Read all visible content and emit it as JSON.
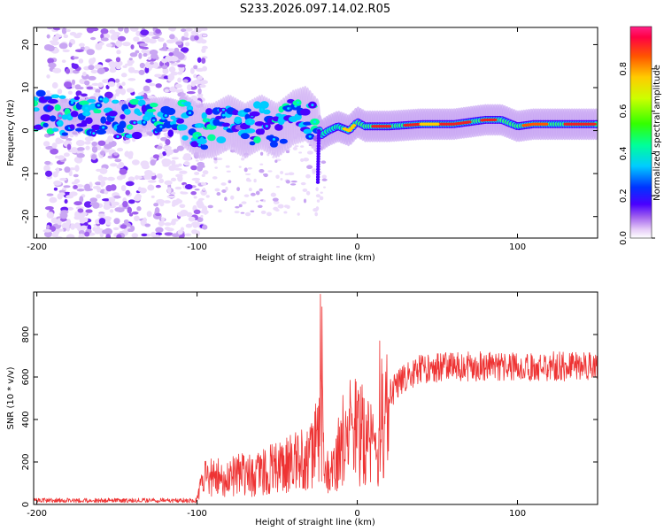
{
  "title": "S233.2026.097.14.02.R05",
  "chart_data": [
    {
      "type": "heatmap",
      "name": "spectrogram",
      "xlabel": "Height of straight line (km)",
      "ylabel": "Frequency (Hz)",
      "xlim": [
        -202,
        150
      ],
      "ylim": [
        -25,
        24
      ],
      "xticks": [
        -200,
        -100,
        0,
        100
      ],
      "yticks": [
        -20,
        -10,
        0,
        10,
        20
      ],
      "colorbar": {
        "label": "Normalized spectral amplitude",
        "range": [
          0,
          1
        ],
        "ticks": [
          0.0,
          0.2,
          0.4,
          0.6,
          0.8
        ]
      },
      "ridge": [
        {
          "x": -202,
          "y": 4.5
        },
        {
          "x": -195,
          "y": 4
        },
        {
          "x": -185,
          "y": 3.5
        },
        {
          "x": -170,
          "y": 3.5
        },
        {
          "x": -150,
          "y": 3
        },
        {
          "x": -130,
          "y": 3.5
        },
        {
          "x": -120,
          "y": 4
        },
        {
          "x": -110,
          "y": 3
        },
        {
          "x": -100,
          "y": 0
        },
        {
          "x": -90,
          "y": 0
        },
        {
          "x": -80,
          "y": 2
        },
        {
          "x": -70,
          "y": 0
        },
        {
          "x": -60,
          "y": 2
        },
        {
          "x": -50,
          "y": 0
        },
        {
          "x": -40,
          "y": 3
        },
        {
          "x": -32,
          "y": 4
        },
        {
          "x": -25,
          "y": 1
        },
        {
          "x": -22,
          "y": -1
        },
        {
          "x": -18,
          "y": 0
        },
        {
          "x": -12,
          "y": 1
        },
        {
          "x": -5,
          "y": 0
        },
        {
          "x": 0,
          "y": 2
        },
        {
          "x": 5,
          "y": 1
        },
        {
          "x": 10,
          "y": 1
        },
        {
          "x": 20,
          "y": 1
        },
        {
          "x": 40,
          "y": 1.5
        },
        {
          "x": 60,
          "y": 1.5
        },
        {
          "x": 80,
          "y": 2.5
        },
        {
          "x": 90,
          "y": 2.5
        },
        {
          "x": 100,
          "y": 1
        },
        {
          "x": 110,
          "y": 1.5
        },
        {
          "x": 130,
          "y": 1.5
        },
        {
          "x": 150,
          "y": 1.5
        }
      ]
    },
    {
      "type": "line",
      "name": "snr",
      "xlabel": "Height of straight line (km)",
      "ylabel": "SNR (10 * v/v)",
      "xlim": [
        -202,
        150
      ],
      "ylim": [
        0,
        1000
      ],
      "xticks": [
        -200,
        -100,
        0,
        100
      ],
      "yticks": [
        0,
        200,
        400,
        600,
        800
      ],
      "color": "#ee3333",
      "envelope": [
        {
          "x": -202,
          "y": 20
        },
        {
          "x": -150,
          "y": 20
        },
        {
          "x": -110,
          "y": 25
        },
        {
          "x": -100,
          "y": 60
        },
        {
          "x": -95,
          "y": 150
        },
        {
          "x": -85,
          "y": 150
        },
        {
          "x": -60,
          "y": 180
        },
        {
          "x": -45,
          "y": 220
        },
        {
          "x": -35,
          "y": 250
        },
        {
          "x": -28,
          "y": 280
        },
        {
          "x": -25,
          "y": 420
        },
        {
          "x": -22,
          "y": 500
        },
        {
          "x": -19,
          "y": 200
        },
        {
          "x": -15,
          "y": 180
        },
        {
          "x": -10,
          "y": 350
        },
        {
          "x": -5,
          "y": 430
        },
        {
          "x": 0,
          "y": 400
        },
        {
          "x": 5,
          "y": 420
        },
        {
          "x": 10,
          "y": 350
        },
        {
          "x": 12,
          "y": 200
        },
        {
          "x": 15,
          "y": 480
        },
        {
          "x": 20,
          "y": 520
        },
        {
          "x": 30,
          "y": 600
        },
        {
          "x": 40,
          "y": 640
        },
        {
          "x": 60,
          "y": 650
        },
        {
          "x": 100,
          "y": 650
        },
        {
          "x": 150,
          "y": 650
        }
      ],
      "peaks": [
        {
          "x": -23,
          "y": 990
        },
        {
          "x": -22,
          "y": 930
        },
        {
          "x": 14,
          "y": 770
        }
      ]
    }
  ]
}
